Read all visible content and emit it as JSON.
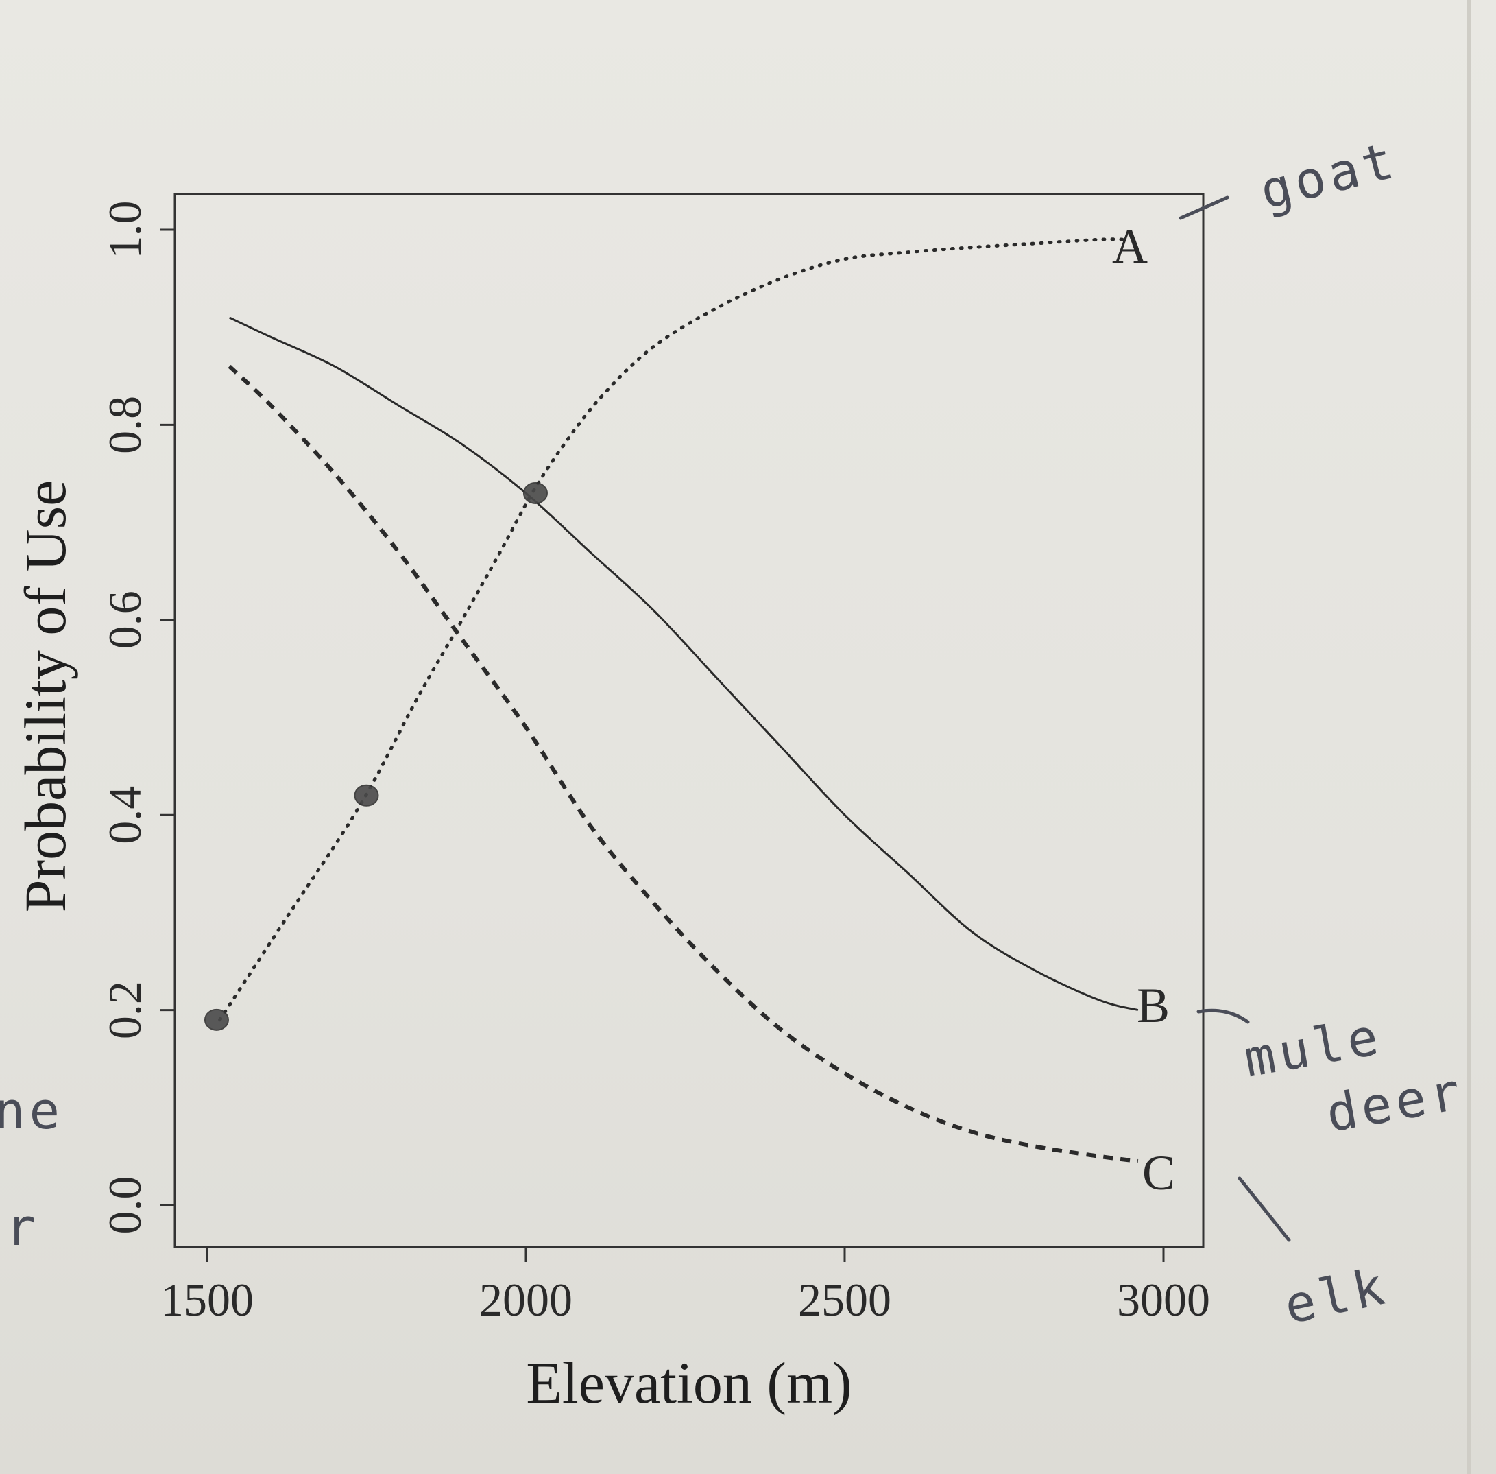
{
  "chart_data": {
    "type": "line",
    "xlabel": "Elevation (m)",
    "ylabel": "Probability of Use",
    "xlim": [
      1500,
      3000
    ],
    "ylim": [
      0.0,
      1.0
    ],
    "x_ticks": [
      "1500",
      "2000",
      "2500",
      "3000"
    ],
    "y_ticks": [
      "0.0",
      "0.2",
      "0.4",
      "0.6",
      "0.8",
      "1.0"
    ],
    "grid": false,
    "legend": "none",
    "series": [
      {
        "name": "A",
        "style": "dotted",
        "x": [
          1520,
          1620,
          1740,
          1830,
          1900,
          1960,
          2010,
          2060,
          2120,
          2200,
          2300,
          2400,
          2500,
          2600,
          2700,
          2800,
          2900,
          2940
        ],
        "y": [
          0.19,
          0.29,
          0.41,
          0.52,
          0.6,
          0.67,
          0.73,
          0.78,
          0.83,
          0.88,
          0.92,
          0.95,
          0.97,
          0.977,
          0.982,
          0.986,
          0.99,
          0.99
        ]
      },
      {
        "name": "B",
        "style": "solid",
        "x": [
          1535,
          1600,
          1700,
          1800,
          1900,
          2000,
          2100,
          2200,
          2300,
          2400,
          2500,
          2600,
          2700,
          2800,
          2900,
          2960
        ],
        "y": [
          0.91,
          0.89,
          0.86,
          0.82,
          0.78,
          0.73,
          0.67,
          0.61,
          0.54,
          0.47,
          0.4,
          0.34,
          0.28,
          0.24,
          0.21,
          0.2
        ]
      },
      {
        "name": "C",
        "style": "dashed",
        "x": [
          1535,
          1600,
          1700,
          1800,
          1900,
          2000,
          2100,
          2200,
          2300,
          2400,
          2500,
          2600,
          2700,
          2800,
          2900,
          2960
        ],
        "y": [
          0.86,
          0.82,
          0.75,
          0.67,
          0.58,
          0.49,
          0.39,
          0.31,
          0.24,
          0.18,
          0.135,
          0.1,
          0.075,
          0.06,
          0.05,
          0.045
        ]
      }
    ],
    "highlighted_points": [
      {
        "x": 1515,
        "y": 0.19
      },
      {
        "x": 1750,
        "y": 0.42
      },
      {
        "x": 2015,
        "y": 0.73
      }
    ],
    "colors": {
      "curve": "#2a2a2a",
      "point": "#4a4a4a",
      "ink": "#4a4d58"
    }
  },
  "annotations": {
    "goat": "goat",
    "mule": "mule",
    "deer": "deer",
    "elk": "elk",
    "margin_a": "ne",
    "margin_b": "r"
  }
}
